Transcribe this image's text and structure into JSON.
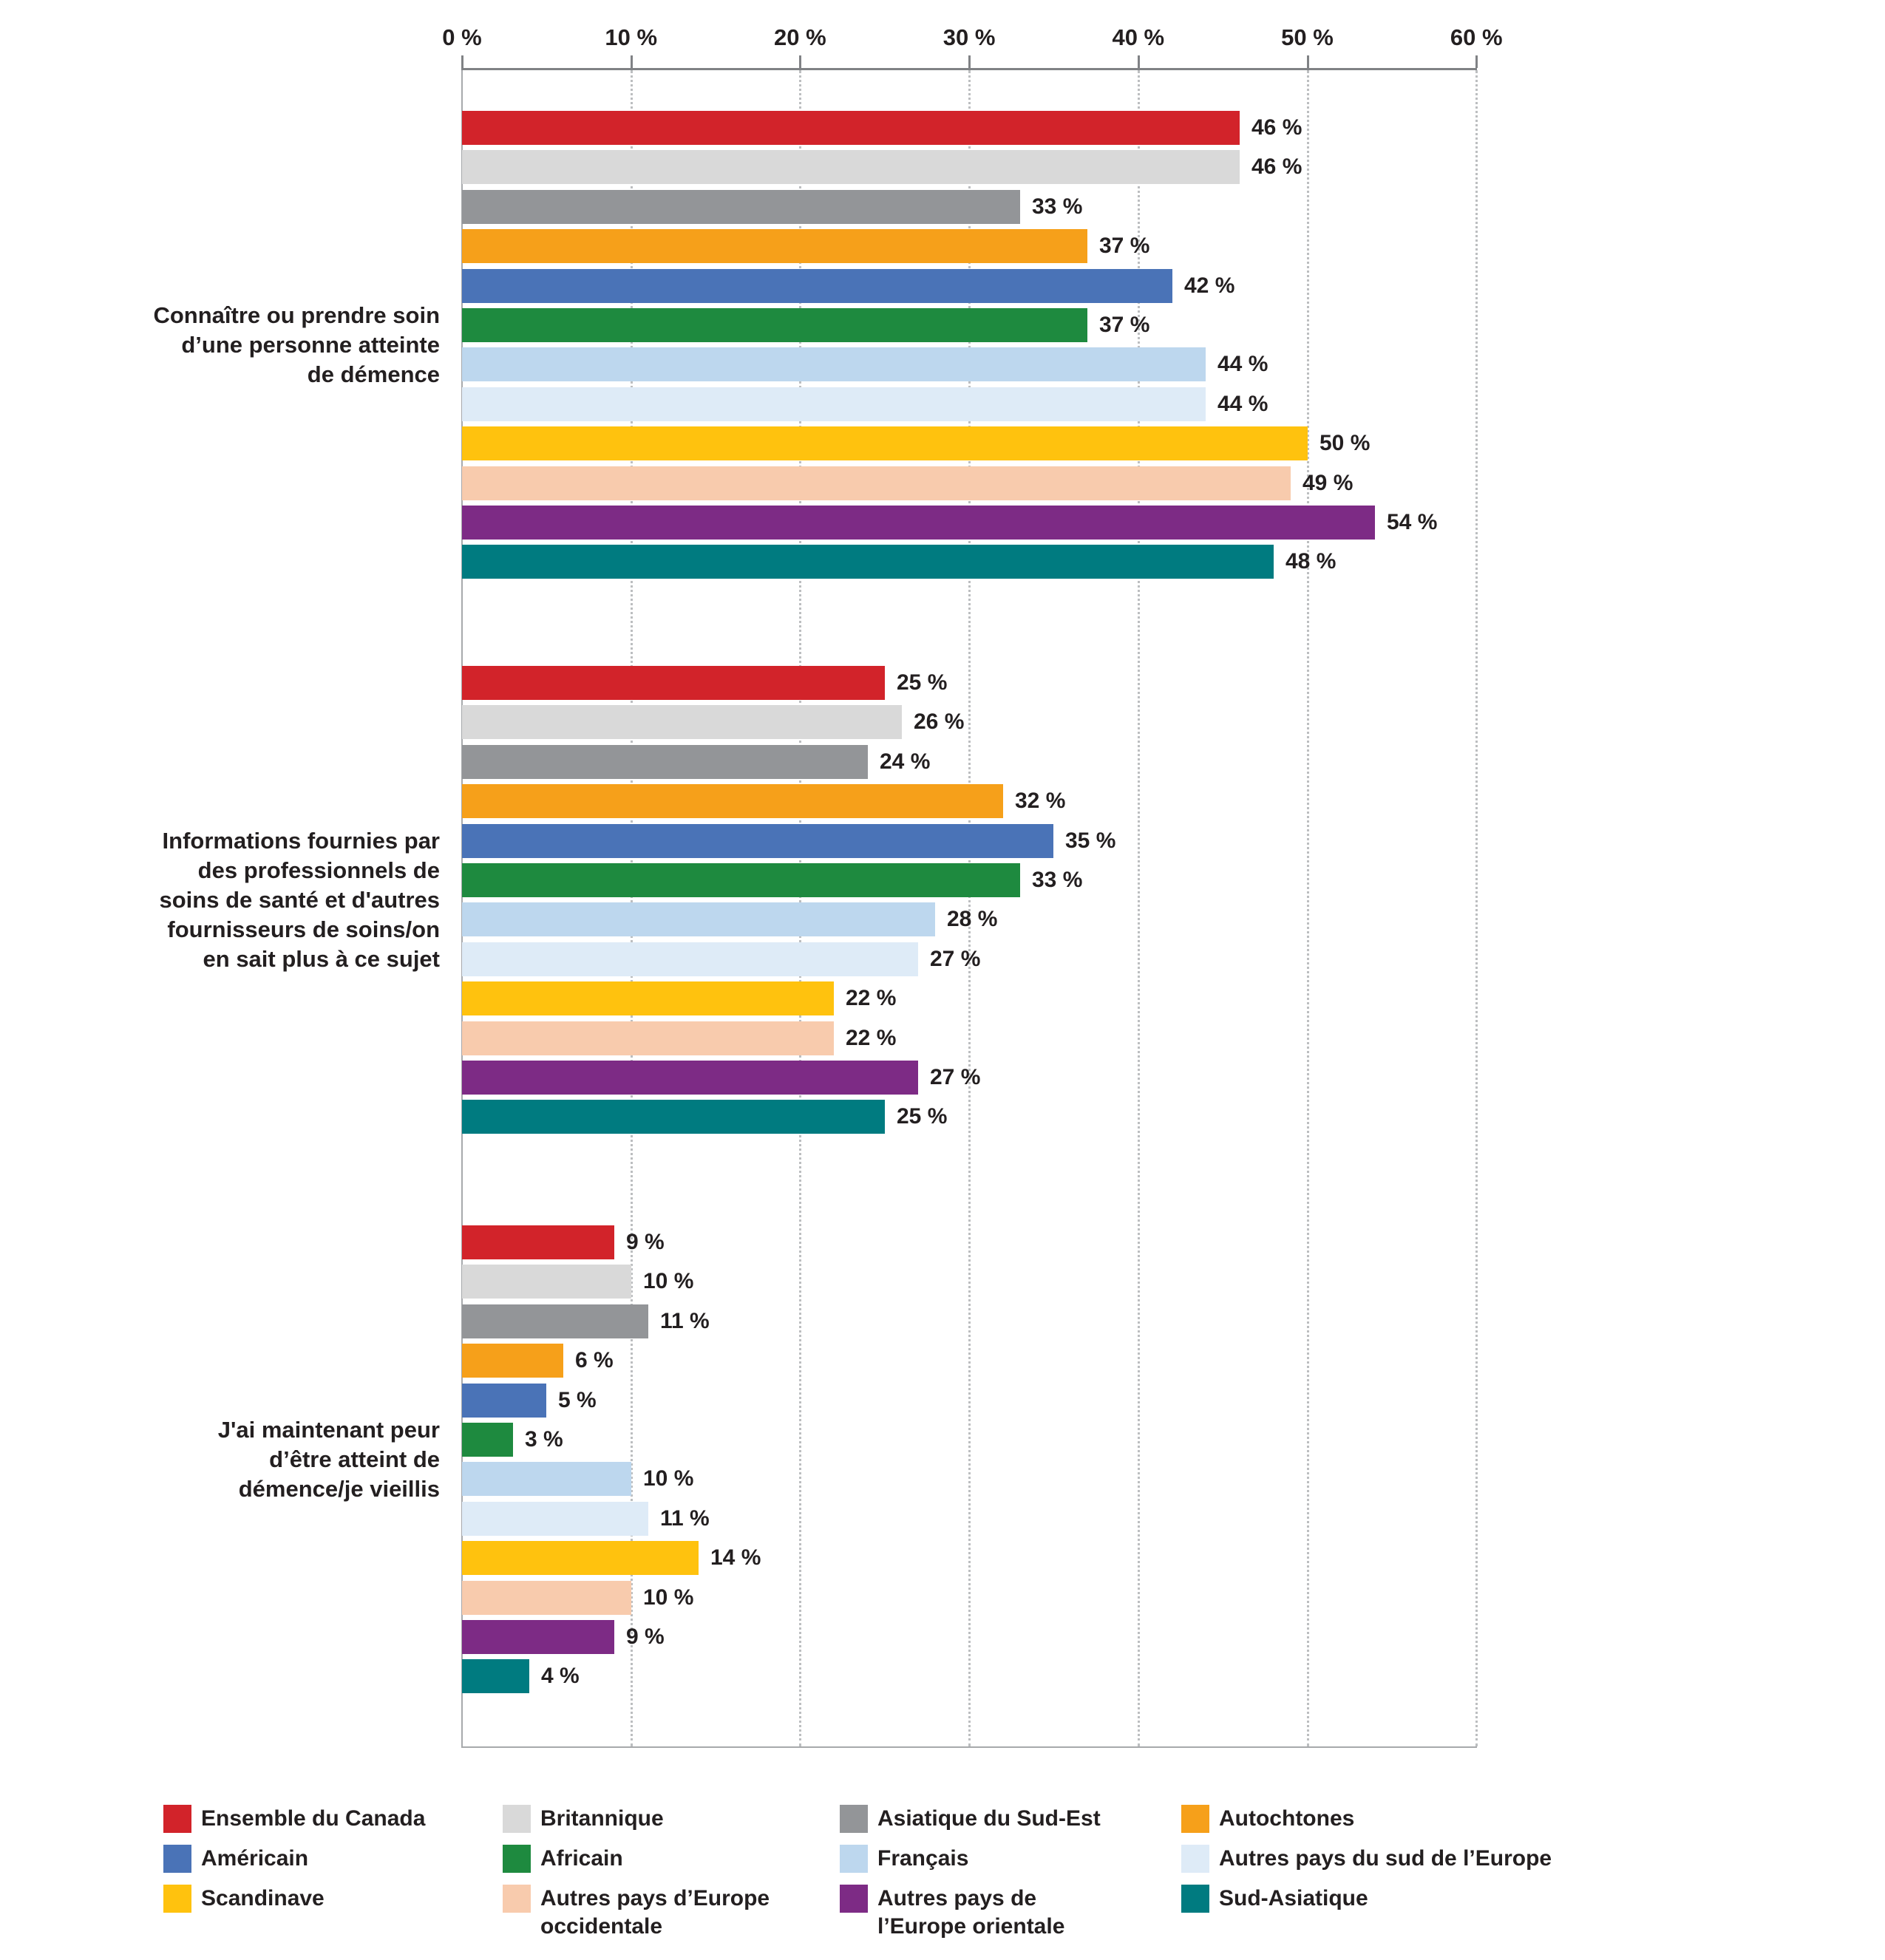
{
  "chart_data": {
    "type": "bar",
    "orientation": "horizontal",
    "title": "",
    "xlabel": "",
    "ylabel": "",
    "x_axis": {
      "min": 0,
      "max": 60,
      "tick_step": 10,
      "ticks": [
        "0 %",
        "10 %",
        "20 %",
        "30 %",
        "40 %",
        "50 %",
        "60 %"
      ],
      "grid": "dotted"
    },
    "value_suffix": " %",
    "legend_position": "bottom",
    "series": [
      {
        "name": "Ensemble du Canada",
        "color": "#D2232A"
      },
      {
        "name": "Britannique",
        "color": "#D9D9D9"
      },
      {
        "name": "Asiatique du Sud-Est",
        "color": "#939598"
      },
      {
        "name": "Autochtones",
        "color": "#F6A01A"
      },
      {
        "name": "Américain",
        "color": "#4A73B7"
      },
      {
        "name": "Africain",
        "color": "#1E8A3F"
      },
      {
        "name": "Français",
        "color": "#BDD7EE"
      },
      {
        "name": "Autres pays du sud de l’Europe",
        "color": "#DEEBF7"
      },
      {
        "name": "Scandinave",
        "color": "#FFC20E"
      },
      {
        "name": "Autres pays d’Europe occidentale",
        "color": "#F8CBAD"
      },
      {
        "name": "Autres pays de l’Europe orientale",
        "color": "#7D2B85"
      },
      {
        "name": "Sud-Asiatique",
        "color": "#007B80"
      }
    ],
    "groups": [
      {
        "label": "Connaître ou prendre soin d’une personne atteinte de démence",
        "values": [
          46,
          46,
          33,
          37,
          42,
          37,
          44,
          44,
          50,
          49,
          54,
          48
        ]
      },
      {
        "label": "Informations fournies par des professionnels de soins de santé et d'autres fournisseurs de soins/on en sait plus à ce sujet",
        "values": [
          25,
          26,
          24,
          32,
          35,
          33,
          28,
          27,
          22,
          22,
          27,
          25
        ]
      },
      {
        "label": "J'ai maintenant peur d’être atteint de démence/je vieillis",
        "values": [
          9,
          10,
          11,
          6,
          5,
          3,
          10,
          11,
          14,
          10,
          9,
          4
        ]
      }
    ]
  }
}
